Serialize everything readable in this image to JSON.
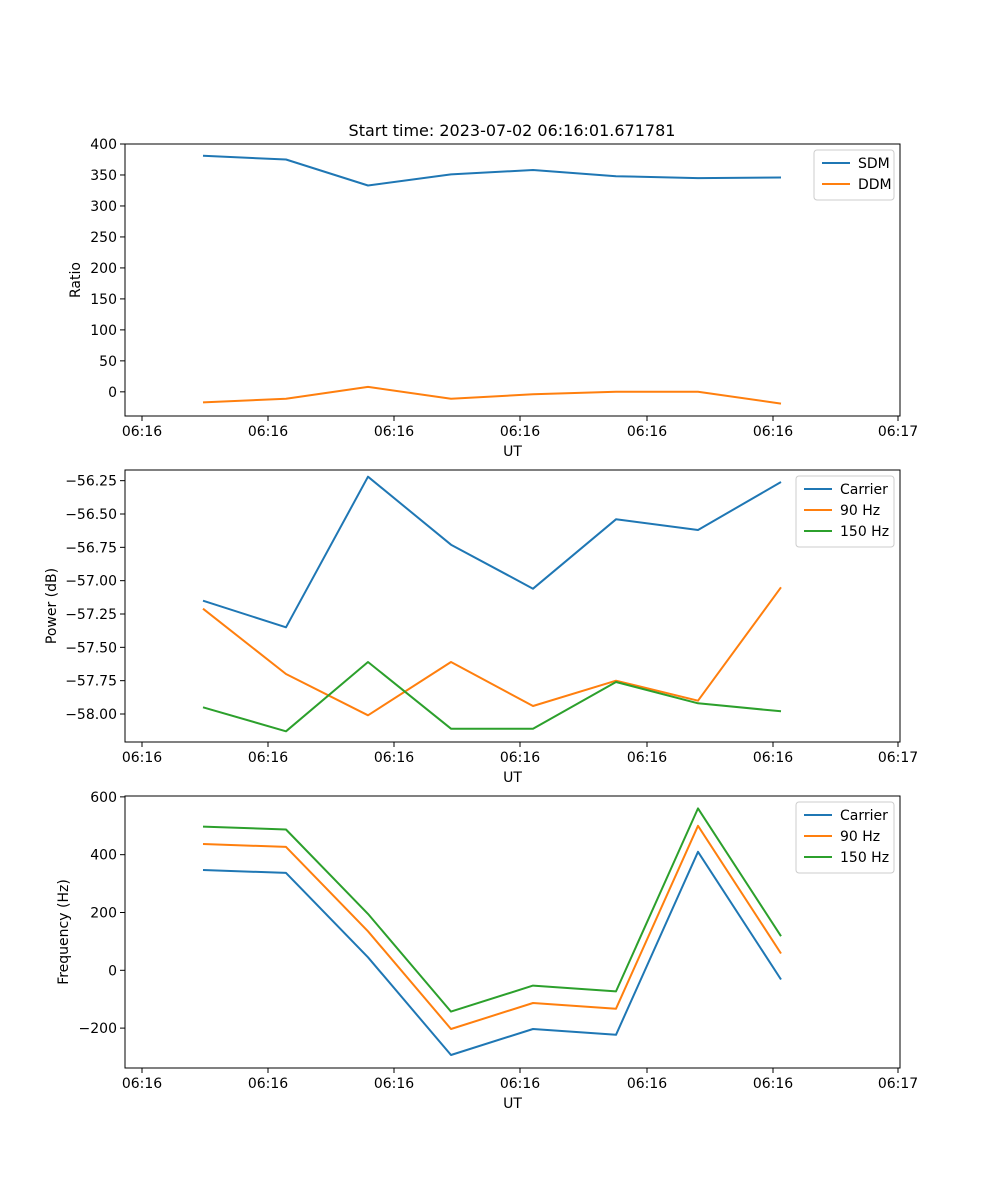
{
  "figure_title": "Start time: 2023-07-02 06:16:01.671781",
  "chart_data": [
    {
      "type": "line",
      "title": "Start time: 2023-07-02 06:16:01.671781",
      "xlabel": "UT",
      "ylabel": "Ratio",
      "x_ticks": [
        "06:16",
        "06:16",
        "06:16",
        "06:16",
        "06:16",
        "06:16",
        "06:17"
      ],
      "y_ticks": [
        0,
        50,
        100,
        150,
        200,
        250,
        300,
        350,
        400
      ],
      "ylim": [
        -39,
        400
      ],
      "legend": "top-right",
      "series": [
        {
          "name": "SDM",
          "color": "#1f77b4",
          "values": [
            381,
            375,
            333,
            351,
            358,
            348,
            345,
            346
          ]
        },
        {
          "name": "DDM",
          "color": "#ff7f0e",
          "values": [
            -17,
            -11,
            8,
            -11,
            -4,
            0,
            0,
            -19
          ]
        }
      ]
    },
    {
      "type": "line",
      "title": "",
      "xlabel": "UT",
      "ylabel": "Power (dB)",
      "x_ticks": [
        "06:16",
        "06:16",
        "06:16",
        "06:16",
        "06:16",
        "06:16",
        "06:17"
      ],
      "y_ticks": [
        -58.0,
        -57.75,
        -57.5,
        -57.25,
        -57.0,
        -56.75,
        -56.5,
        -56.25
      ],
      "y_tick_labels": [
        "−58.00",
        "−57.75",
        "−57.50",
        "−57.25",
        "−57.00",
        "−56.75",
        "−56.50",
        "−56.25"
      ],
      "ylim": [
        -58.21,
        -56.17
      ],
      "legend": "top-right",
      "series": [
        {
          "name": "Carrier",
          "color": "#1f77b4",
          "values": [
            -57.15,
            -57.35,
            -56.22,
            -56.73,
            -57.06,
            -56.54,
            -56.62,
            -56.26
          ]
        },
        {
          "name": "90 Hz",
          "color": "#ff7f0e",
          "values": [
            -57.21,
            -57.7,
            -58.01,
            -57.61,
            -57.94,
            -57.75,
            -57.9,
            -57.05
          ]
        },
        {
          "name": "150 Hz",
          "color": "#2ca02c",
          "values": [
            -57.95,
            -58.13,
            -57.61,
            -58.11,
            -58.11,
            -57.76,
            -57.92,
            -57.98
          ]
        }
      ]
    },
    {
      "type": "line",
      "title": "",
      "xlabel": "UT",
      "ylabel": "Frequency (Hz)",
      "x_ticks": [
        "06:16",
        "06:16",
        "06:16",
        "06:16",
        "06:16",
        "06:16",
        "06:17"
      ],
      "y_ticks": [
        -200,
        0,
        200,
        400,
        600
      ],
      "y_tick_labels": [
        "−200",
        "0",
        "200",
        "400",
        "600"
      ],
      "ylim": [
        -338,
        603
      ],
      "legend": "top-right",
      "series": [
        {
          "name": "Carrier",
          "color": "#1f77b4",
          "values": [
            347,
            337,
            45,
            -293,
            -203,
            -223,
            410,
            -32
          ]
        },
        {
          "name": "90 Hz",
          "color": "#ff7f0e",
          "values": [
            437,
            427,
            135,
            -203,
            -113,
            -133,
            500,
            58
          ]
        },
        {
          "name": "150 Hz",
          "color": "#2ca02c",
          "values": [
            497,
            487,
            195,
            -143,
            -53,
            -73,
            560,
            118
          ]
        }
      ]
    }
  ]
}
